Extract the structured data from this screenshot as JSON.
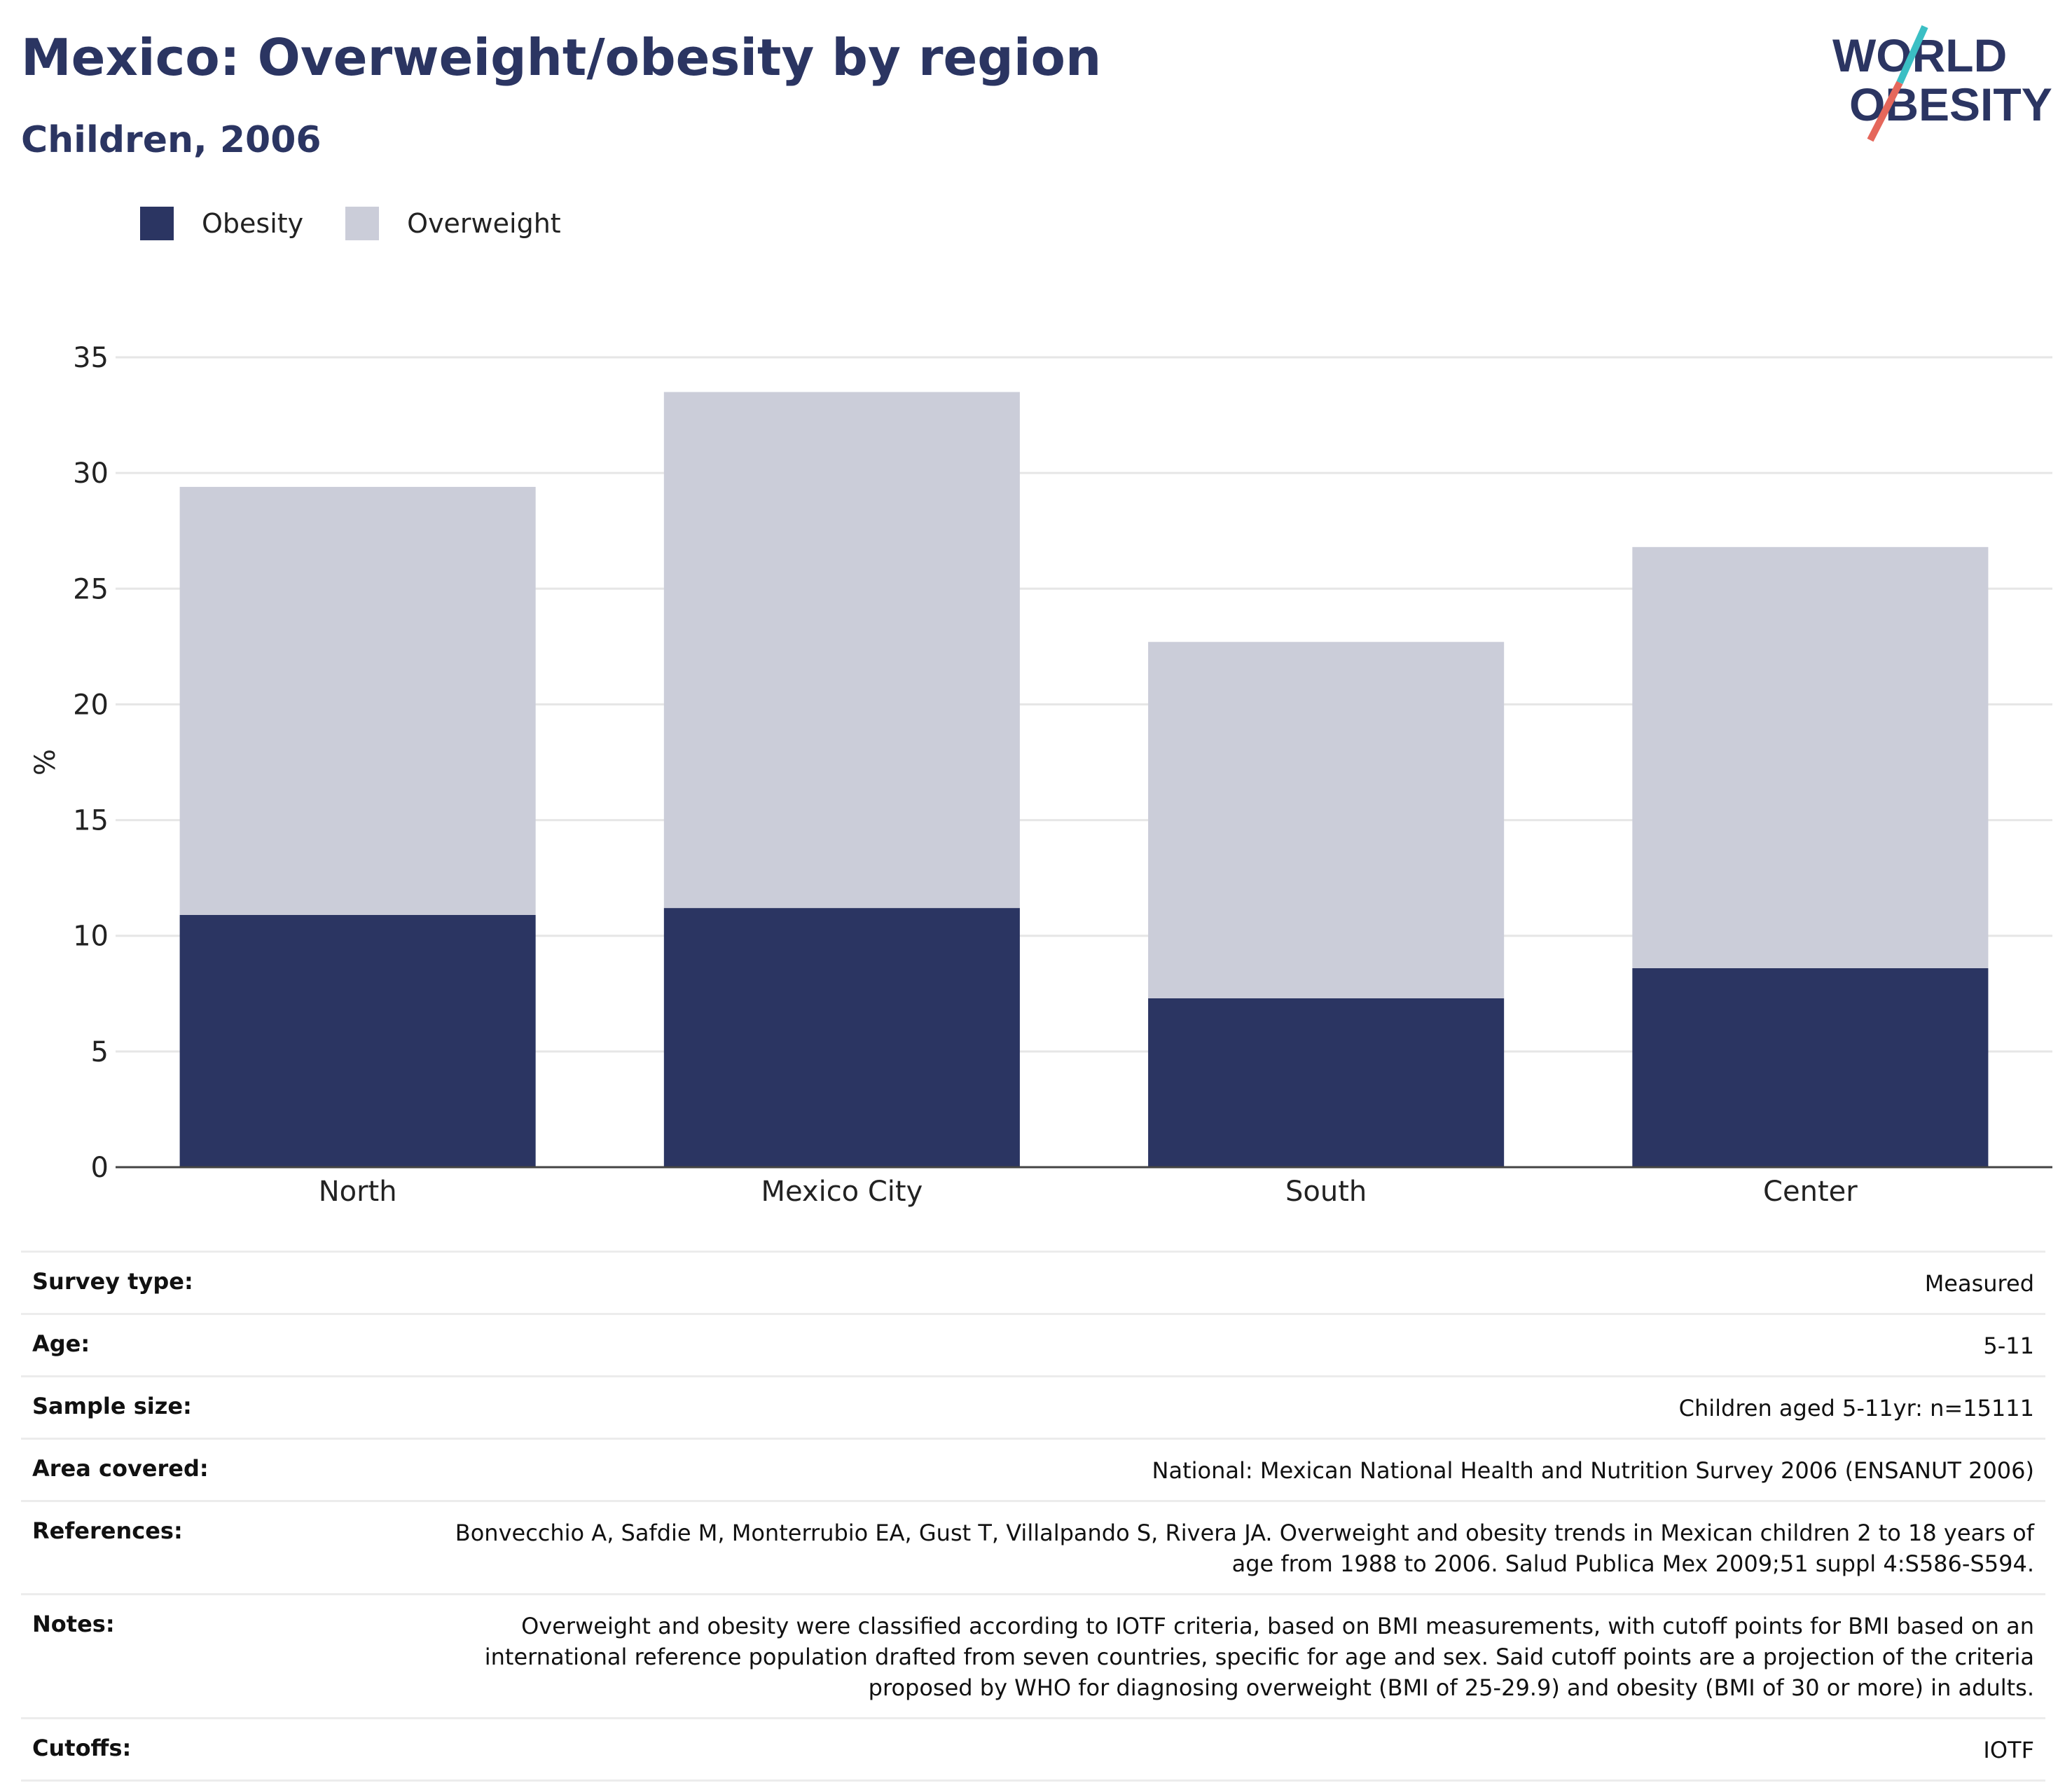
{
  "header": {
    "title": "Mexico: Overweight/obesity by region",
    "subtitle": "Children, 2006"
  },
  "logo": {
    "line1": "WORLD",
    "line2": "OBESITY",
    "colors": {
      "text": "#2b3562",
      "slash_top": "#3bbfc4",
      "slash_bottom": "#e5675b"
    }
  },
  "legend": [
    {
      "label": "Obesity",
      "color": "#2b3562"
    },
    {
      "label": "Overweight",
      "color": "#cbcdd9"
    }
  ],
  "chart_data": {
    "type": "bar",
    "stacked": true,
    "categories": [
      "North",
      "Mexico City",
      "South",
      "Center"
    ],
    "series": [
      {
        "name": "Obesity",
        "color": "#2b3562",
        "values": [
          10.9,
          11.2,
          7.3,
          8.6
        ]
      },
      {
        "name": "Overweight",
        "color": "#cbcdd9",
        "values": [
          18.5,
          22.3,
          15.4,
          18.2
        ]
      }
    ],
    "totals": [
      29.4,
      33.5,
      22.7,
      26.8
    ],
    "ylabel": "%",
    "ylim": [
      0,
      35
    ],
    "yticks": [
      0,
      5,
      10,
      15,
      20,
      25,
      30,
      35
    ],
    "grid": true,
    "legend_position": "top-left"
  },
  "meta": [
    {
      "key": "Survey type:",
      "value": "Measured"
    },
    {
      "key": "Age:",
      "value": "5-11"
    },
    {
      "key": "Sample size:",
      "value": "Children aged 5-11yr: n=15111"
    },
    {
      "key": "Area covered:",
      "value": "National: Mexican National Health and Nutrition Survey 2006 (ENSANUT 2006)"
    },
    {
      "key": "References:",
      "value": "Bonvecchio A, Safdie M, Monterrubio EA, Gust T, Villalpando S, Rivera JA. Overweight and obesity trends in Mexican children 2 to 18 years of age from 1988 to 2006. Salud Publica Mex 2009;51 suppl 4:S586-S594."
    },
    {
      "key": "Notes:",
      "value": "Overweight and obesity were classified according to IOTF criteria, based on BMI measurements, with cutoff points for BMI based on an international reference population drafted from seven countries, specific for age and sex. Said cutoff points are a projection of the criteria proposed by WHO for diagnosing overweight (BMI of 25-29.9) and obesity (BMI of 30 or more) in adults."
    },
    {
      "key": "Cutoffs:",
      "value": "IOTF"
    }
  ]
}
